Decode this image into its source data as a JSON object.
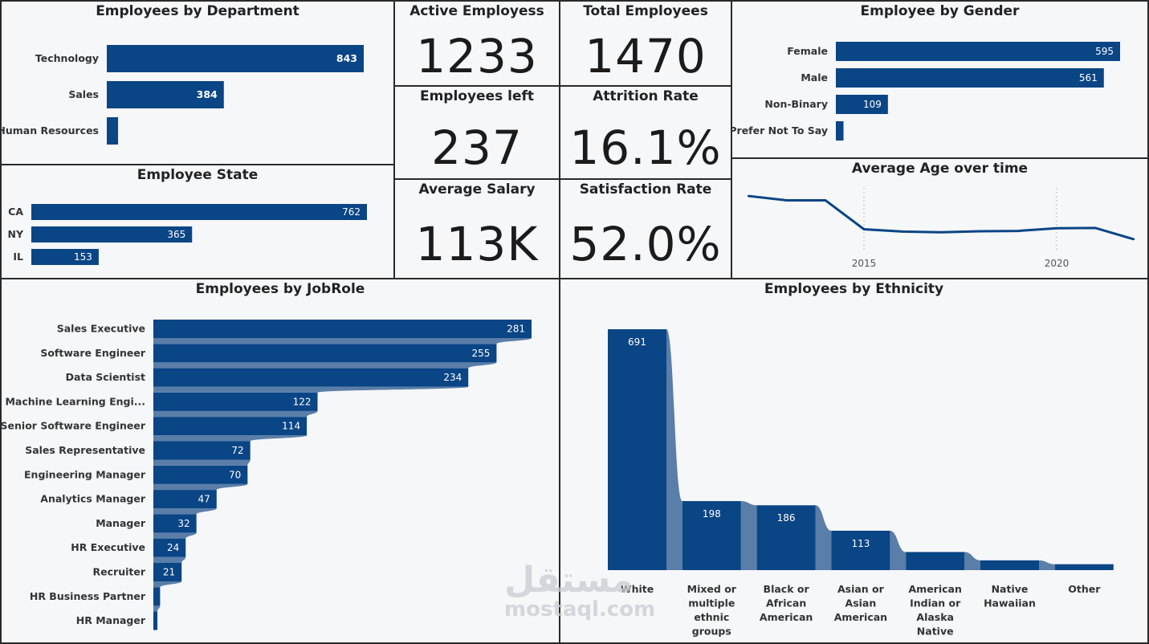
{
  "colors": {
    "bar": "#0a4585",
    "bar_light": "#5a7ea8",
    "line": "#0a4585"
  },
  "kpis": {
    "active": {
      "title": "Active Employess",
      "value": "1233"
    },
    "total": {
      "title": "Total Employees",
      "value": "1470"
    },
    "left": {
      "title": "Employees left",
      "value": "237"
    },
    "attrition": {
      "title": "Attrition Rate",
      "value": "16.1%"
    },
    "salary": {
      "title": "Average Salary",
      "value": "113K"
    },
    "satisfaction": {
      "title": "Satisfaction Rate",
      "value": "52.0%"
    }
  },
  "watermark": {
    "arabic": "مستقل",
    "latin": "mostaql.com"
  },
  "chart_data": [
    {
      "id": "dept",
      "type": "bar",
      "orientation": "horizontal",
      "title": "Employees by Department",
      "categories": [
        "Technology",
        "Sales",
        "Human Resources"
      ],
      "values": [
        843,
        384,
        37
      ],
      "labels": [
        "843",
        "384",
        ""
      ],
      "xlim": [
        0,
        843
      ]
    },
    {
      "id": "state",
      "type": "bar",
      "orientation": "horizontal",
      "title": "Employee State",
      "categories": [
        "CA",
        "NY",
        "IL"
      ],
      "values": [
        762,
        365,
        153
      ],
      "labels": [
        "762",
        "365",
        "153"
      ],
      "xlim": [
        0,
        762
      ]
    },
    {
      "id": "gender",
      "type": "bar",
      "orientation": "horizontal",
      "title": "Employee by Gender",
      "categories": [
        "Female",
        "Male",
        "Non-Binary",
        "Prefer Not To Say"
      ],
      "values": [
        595,
        561,
        109,
        16
      ],
      "labels": [
        "595",
        "561",
        "109",
        ""
      ],
      "xlim": [
        0,
        595
      ]
    },
    {
      "id": "age",
      "type": "line",
      "title": "Average Age over time",
      "x": [
        2012,
        2013,
        2014,
        2015,
        2016,
        2017,
        2018,
        2019,
        2020,
        2021,
        2022
      ],
      "y": [
        33.5,
        32.2,
        32.2,
        23.5,
        22.8,
        22.6,
        22.9,
        23.0,
        23.8,
        23.9,
        20.5
      ],
      "xticks": [
        "2015",
        "2020"
      ],
      "xlim": [
        2012,
        2022
      ]
    },
    {
      "id": "jobrole",
      "type": "bar",
      "orientation": "horizontal",
      "title": "Employees by JobRole",
      "categories": [
        "Sales Executive",
        "Software Engineer",
        "Data Scientist",
        "Machine Learning Engi...",
        "Senior Software Engineer",
        "Sales Representative",
        "Engineering Manager",
        "Analytics Manager",
        "Manager",
        "HR Executive",
        "Recruiter",
        "HR Business Partner",
        "HR Manager"
      ],
      "values": [
        281,
        255,
        234,
        122,
        114,
        72,
        70,
        47,
        32,
        24,
        21,
        5,
        3
      ],
      "labels": [
        "281",
        "255",
        "234",
        "122",
        "114",
        "72",
        "70",
        "47",
        "32",
        "24",
        "21",
        "",
        ""
      ],
      "xlim": [
        0,
        281
      ]
    },
    {
      "id": "ethnicity",
      "type": "bar",
      "orientation": "vertical",
      "title": "Employees by Ethnicity",
      "categories": [
        "White",
        "Mixed or multiple ethnic groups",
        "Black or African American",
        "Asian or Asian American",
        "American Indian or Alaska Native",
        "Native Hawaiian",
        "Other"
      ],
      "category_lines": [
        [
          "White"
        ],
        [
          "Mixed or",
          "multiple",
          "ethnic",
          "groups"
        ],
        [
          "Black or",
          "African",
          "American"
        ],
        [
          "Asian or",
          "Asian",
          "American"
        ],
        [
          "American",
          "Indian or",
          "Alaska",
          "Native"
        ],
        [
          "Native",
          "Hawaiian"
        ],
        [
          "Other"
        ]
      ],
      "values": [
        691,
        198,
        186,
        113,
        52,
        28,
        17
      ],
      "labels": [
        "691",
        "198",
        "186",
        "113",
        "",
        "",
        ""
      ],
      "ylim": [
        0,
        691
      ]
    }
  ]
}
